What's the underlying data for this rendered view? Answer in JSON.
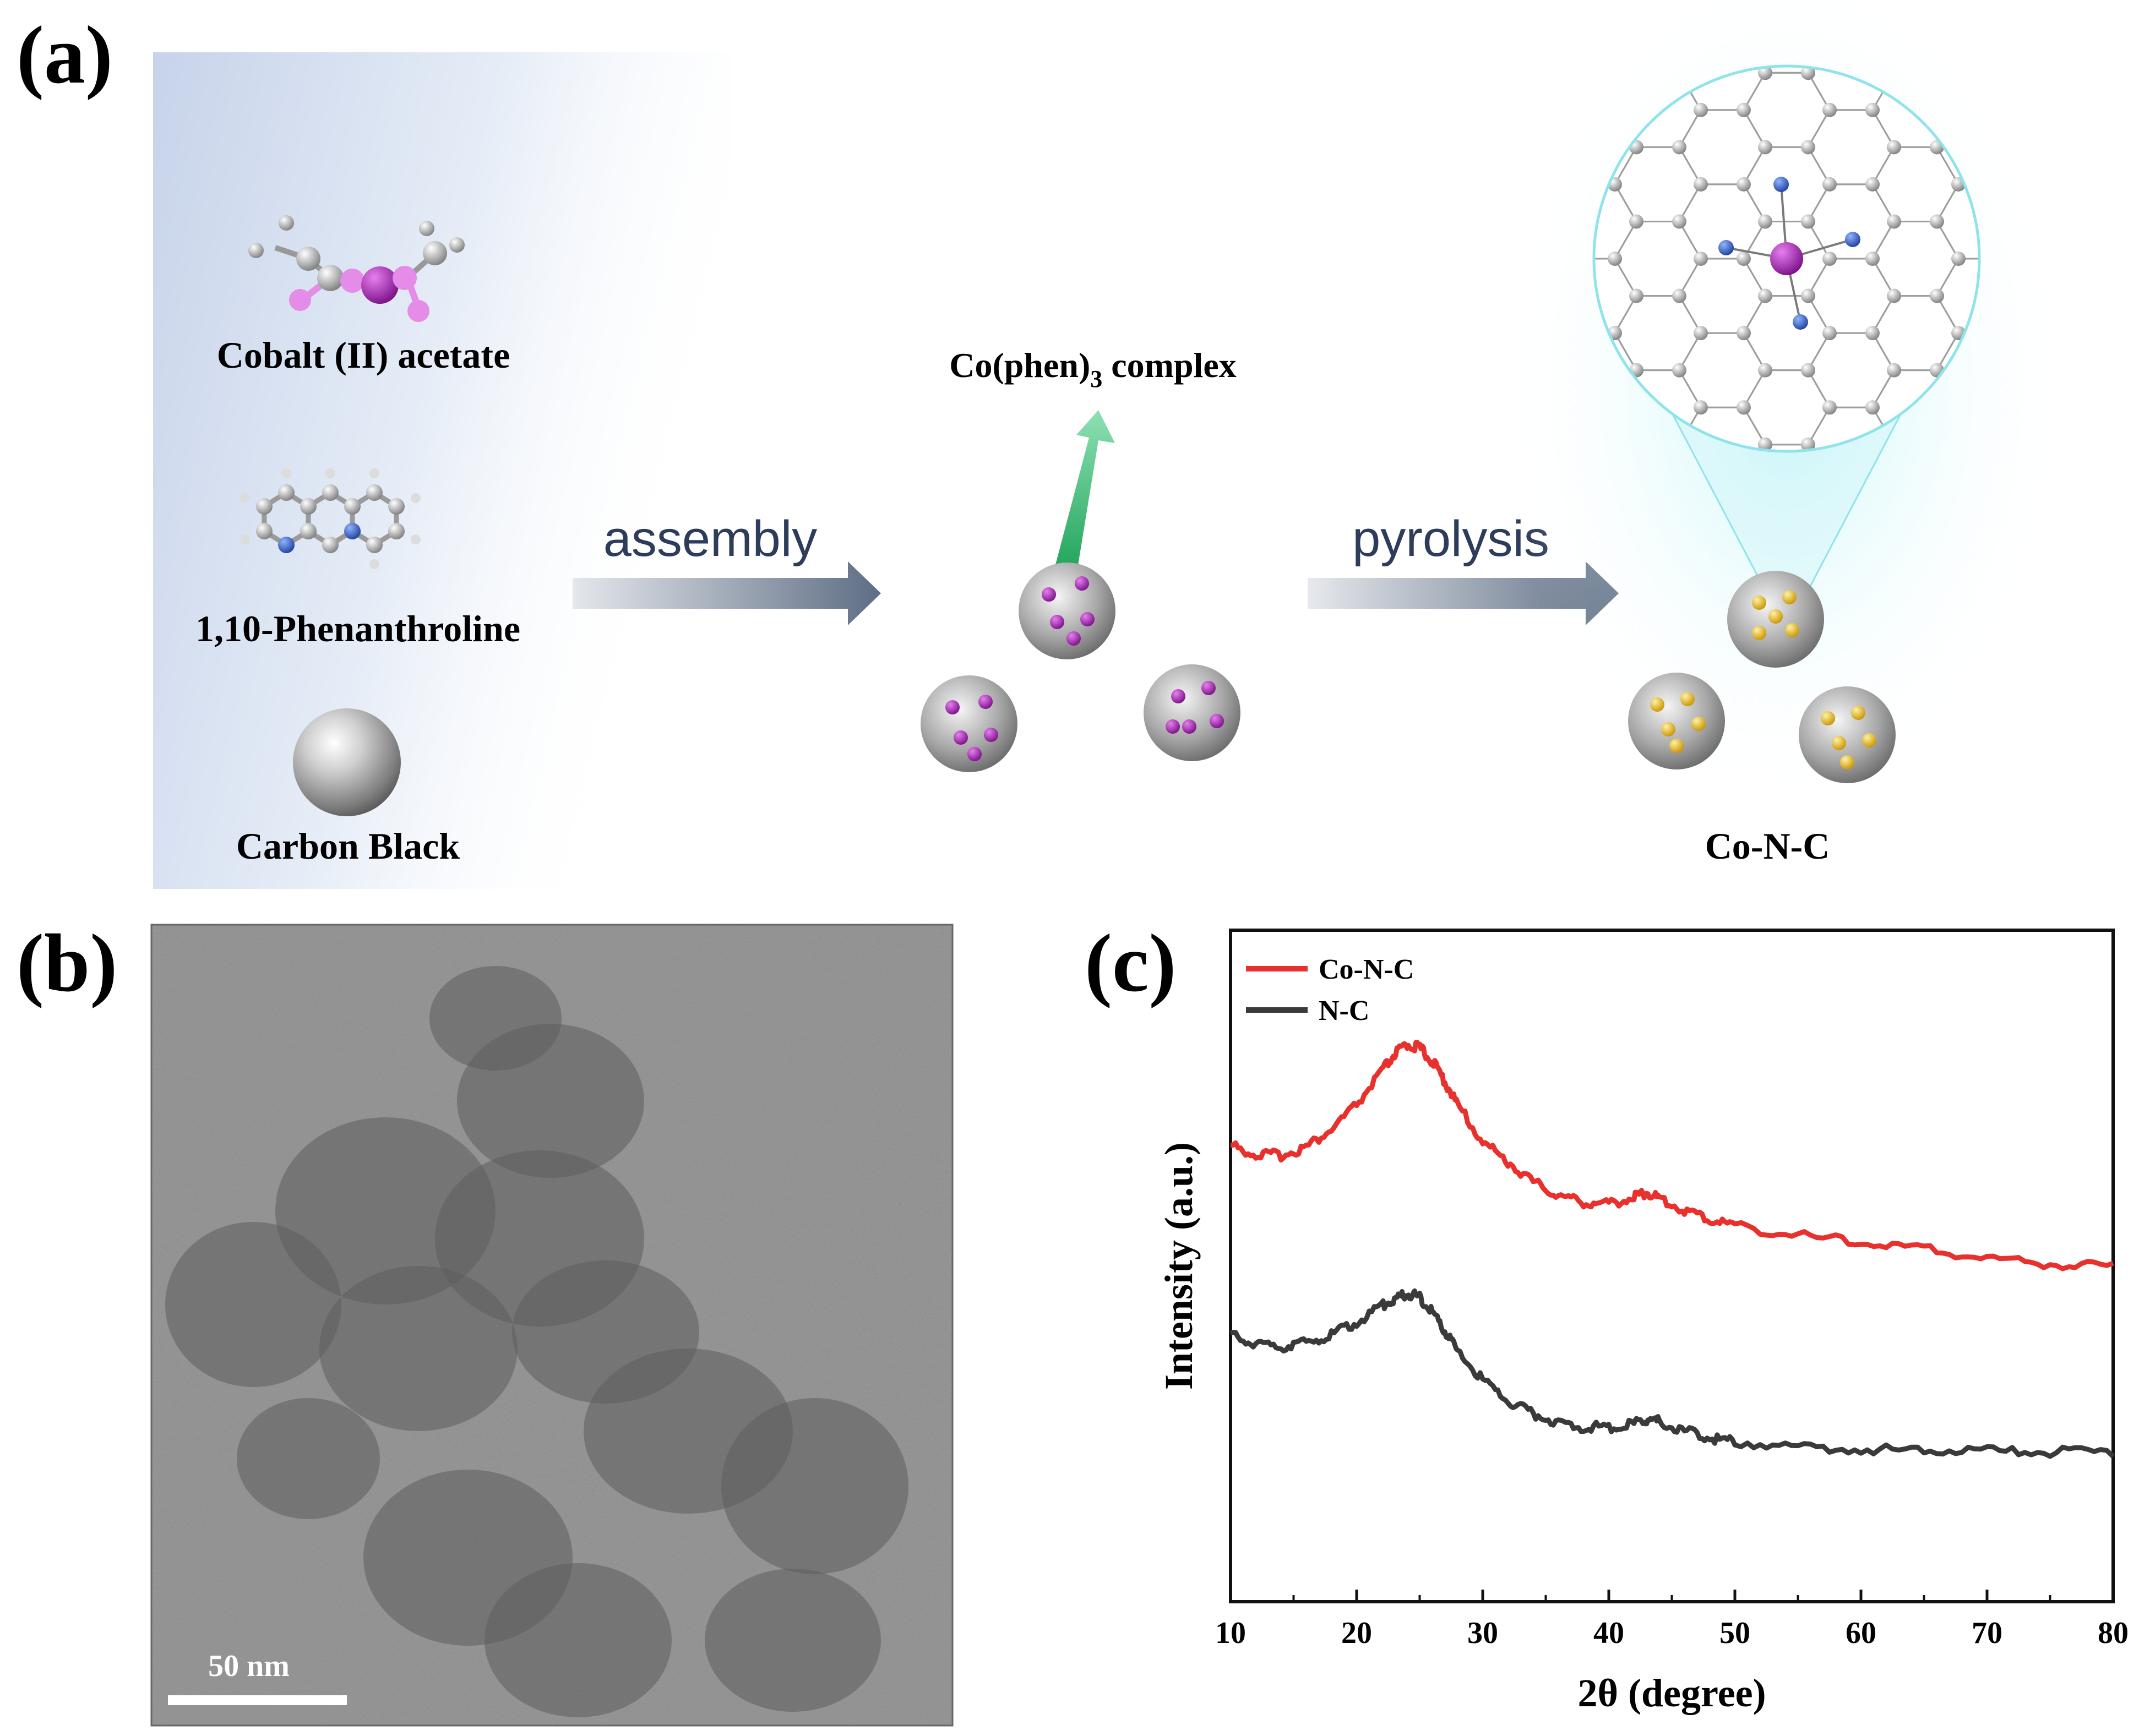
{
  "figure": {
    "panels": {
      "a": "(a)",
      "b": "(b)",
      "c": "(c)"
    },
    "scheme": {
      "reagents": [
        "Cobalt (II) acetate",
        "1,10-Phenanthroline",
        "Carbon Black"
      ],
      "complex_label_main": "Co(phen)",
      "complex_label_sub": "3",
      "complex_label_tail": " complex",
      "step1": "assembly",
      "step2": "pyrolysis",
      "product": "Co-N-C"
    },
    "tem": {
      "scale_bar_label": "50 nm"
    },
    "colors": {
      "co_n_c": "#e8302c",
      "n_c": "#3a3a3a",
      "arrow": "#5d6d84",
      "cobalt_atom": "#9b1fa6",
      "nitrogen_atom": "#2f5fbf",
      "gold_atom": "#e0b400",
      "lens": "#a8eef2"
    }
  },
  "chart_data": {
    "type": "line",
    "xlabel": "2θ (degree)",
    "ylabel": "Intensity (a.u.)",
    "xlim": [
      10,
      80
    ],
    "xticks": [
      10,
      20,
      30,
      40,
      50,
      60,
      70,
      80
    ],
    "y_ticks_shown": false,
    "grid": false,
    "legend_position": "top-left",
    "series": [
      {
        "name": "Co-N-C",
        "color": "#e8302c",
        "x": [
          10,
          12,
          14,
          16,
          18,
          20,
          22,
          23,
          24,
          25,
          26,
          27,
          28,
          30,
          32,
          34,
          36,
          38,
          40,
          42,
          43,
          44,
          46,
          48,
          50,
          55,
          60,
          65,
          70,
          75,
          80
        ],
        "y": [
          0.68,
          0.666,
          0.665,
          0.677,
          0.703,
          0.74,
          0.79,
          0.815,
          0.83,
          0.825,
          0.805,
          0.775,
          0.74,
          0.685,
          0.655,
          0.625,
          0.605,
          0.595,
          0.592,
          0.603,
          0.61,
          0.6,
          0.583,
          0.569,
          0.561,
          0.545,
          0.535,
          0.525,
          0.512,
          0.503,
          0.5
        ]
      },
      {
        "name": "N-C",
        "color": "#3a3a3a",
        "x": [
          10,
          12,
          14,
          16,
          18,
          20,
          22,
          23,
          24,
          25,
          26,
          27,
          28,
          30,
          32,
          34,
          36,
          38,
          40,
          42,
          43,
          44,
          46,
          48,
          50,
          55,
          60,
          65,
          70,
          75,
          80
        ],
        "y": [
          0.4,
          0.381,
          0.38,
          0.385,
          0.397,
          0.416,
          0.44,
          0.45,
          0.46,
          0.453,
          0.432,
          0.403,
          0.373,
          0.33,
          0.3,
          0.28,
          0.267,
          0.26,
          0.26,
          0.265,
          0.272,
          0.268,
          0.254,
          0.244,
          0.238,
          0.231,
          0.227,
          0.225,
          0.224,
          0.223,
          0.222
        ]
      }
    ]
  }
}
